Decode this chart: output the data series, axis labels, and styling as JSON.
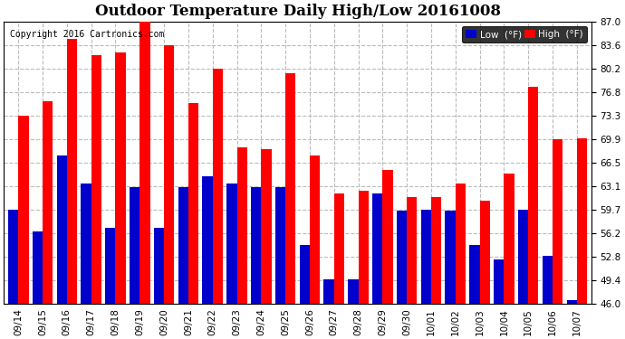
{
  "title": "Outdoor Temperature Daily High/Low 20161008",
  "copyright": "Copyright 2016 Cartronics.com",
  "categories": [
    "09/14",
    "09/15",
    "09/16",
    "09/17",
    "09/18",
    "09/19",
    "09/20",
    "09/21",
    "09/22",
    "09/23",
    "09/24",
    "09/25",
    "09/26",
    "09/27",
    "09/28",
    "09/29",
    "09/30",
    "10/01",
    "10/02",
    "10/03",
    "10/04",
    "10/05",
    "10/06",
    "10/07"
  ],
  "high": [
    73.3,
    75.5,
    84.5,
    82.2,
    82.5,
    87.0,
    83.6,
    75.2,
    80.2,
    68.8,
    68.5,
    79.5,
    67.5,
    62.0,
    62.5,
    65.5,
    61.5,
    61.5,
    63.5,
    61.0,
    65.0,
    77.5,
    69.9,
    70.0
  ],
  "low": [
    59.7,
    56.5,
    67.5,
    63.5,
    57.0,
    63.0,
    57.0,
    63.0,
    64.5,
    63.5,
    63.0,
    63.0,
    54.5,
    49.5,
    49.5,
    62.0,
    59.5,
    59.7,
    59.5,
    54.5,
    52.5,
    59.7,
    53.0,
    46.5
  ],
  "high_color": "#ff0000",
  "low_color": "#0000cc",
  "bg_color": "#ffffff",
  "plot_bg_color": "#ffffff",
  "grid_color": "#bbbbbb",
  "ylim_min": 46.0,
  "ylim_max": 87.0,
  "yticks": [
    46.0,
    49.4,
    52.8,
    56.2,
    59.7,
    63.1,
    66.5,
    69.9,
    73.3,
    76.8,
    80.2,
    83.6,
    87.0
  ],
  "title_fontsize": 12,
  "tick_fontsize": 7.5,
  "bar_width": 0.42
}
